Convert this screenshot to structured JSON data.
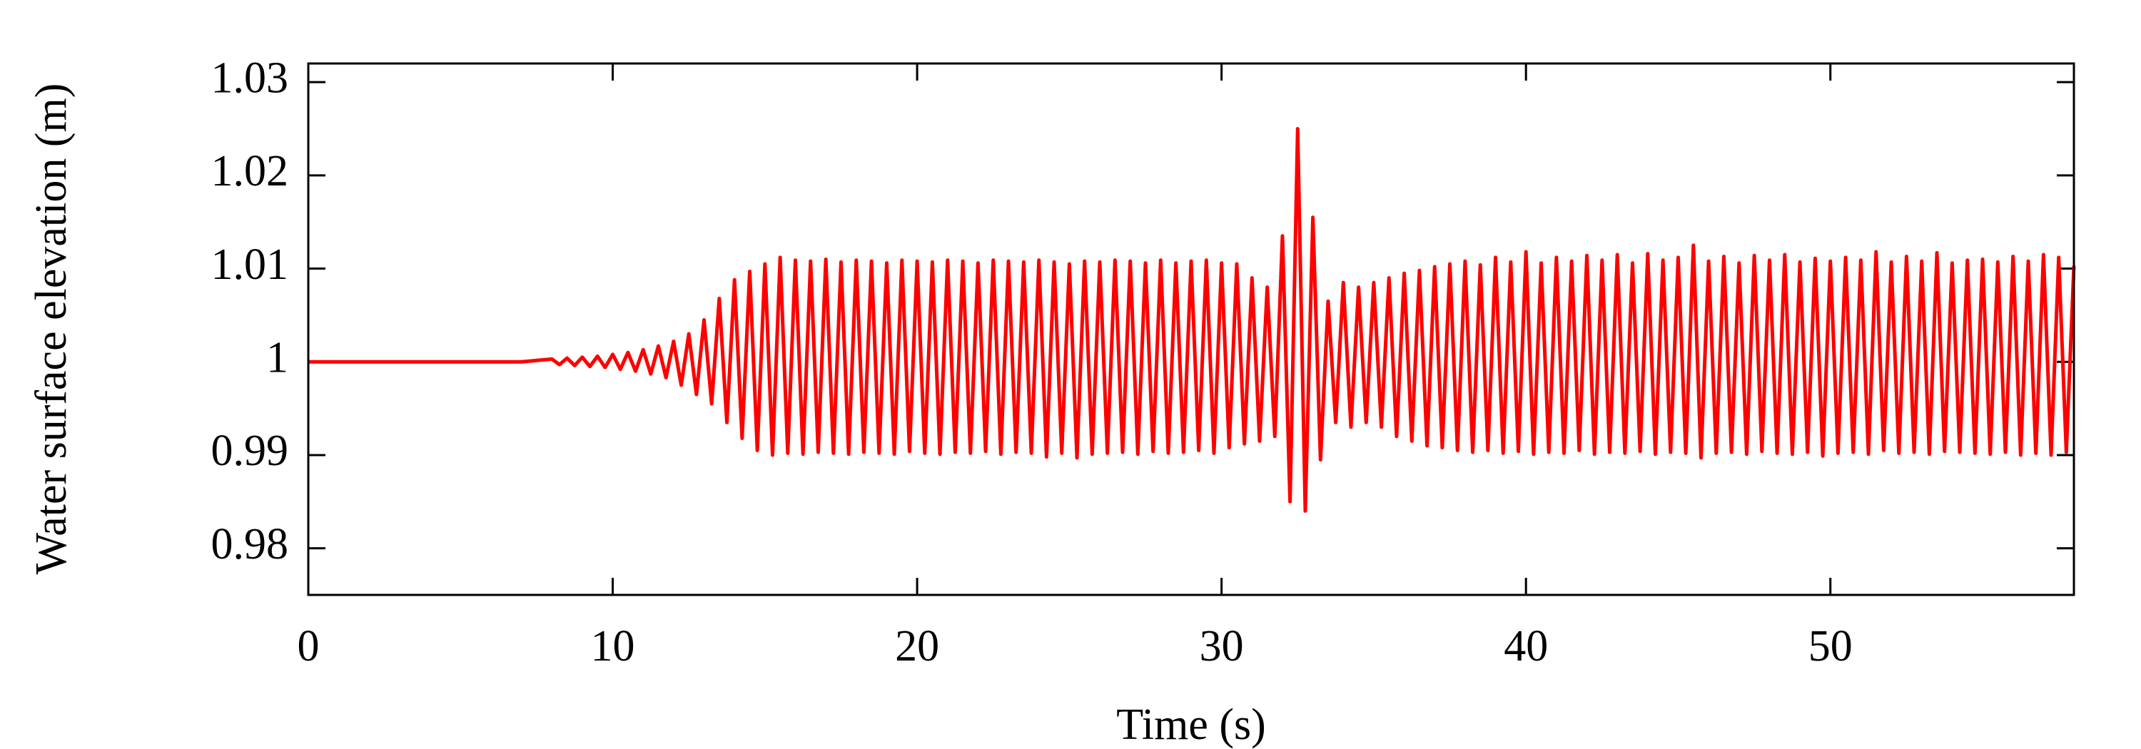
{
  "chart_data": {
    "type": "line",
    "xlabel": "Time (s)",
    "ylabel": "Water surface elevation (m)",
    "color": "#ff0000",
    "xlim": [
      0,
      58
    ],
    "ylim": [
      0.975,
      1.032
    ],
    "xticks": [
      0,
      10,
      20,
      30,
      40,
      50
    ],
    "yticks": [
      0.98,
      0.99,
      1,
      1.01,
      1.02,
      1.03
    ],
    "x": [
      0,
      2,
      4,
      6,
      7,
      8,
      8.25,
      8.5,
      8.75,
      9,
      9.25,
      9.5,
      9.75,
      10,
      10.25,
      10.5,
      10.75,
      11,
      11.25,
      11.5,
      11.75,
      12,
      12.25,
      12.5,
      12.75,
      13,
      13.25,
      13.5,
      13.75,
      14,
      14.25,
      14.5,
      14.75,
      15,
      15.25,
      15.5,
      15.75,
      16,
      16.25,
      16.5,
      16.75,
      17,
      17.25,
      17.5,
      17.75,
      18,
      18.25,
      18.5,
      18.75,
      19,
      19.25,
      19.5,
      19.75,
      20,
      20.25,
      20.5,
      20.75,
      21,
      21.25,
      21.5,
      21.75,
      22,
      22.25,
      22.5,
      22.75,
      23,
      23.25,
      23.5,
      23.75,
      24,
      24.25,
      24.5,
      24.75,
      25,
      25.25,
      25.5,
      25.75,
      26,
      26.25,
      26.5,
      26.75,
      27,
      27.25,
      27.5,
      27.75,
      28,
      28.25,
      28.5,
      28.75,
      29,
      29.25,
      29.5,
      29.75,
      30,
      30.25,
      30.5,
      30.75,
      31,
      31.25,
      31.5,
      31.75,
      32,
      32.25,
      32.5,
      32.75,
      33,
      33.25,
      33.5,
      33.75,
      34,
      34.25,
      34.5,
      34.75,
      35,
      35.25,
      35.5,
      35.75,
      36,
      36.25,
      36.5,
      36.75,
      37,
      37.25,
      37.5,
      37.75,
      38,
      38.25,
      38.5,
      38.75,
      39,
      39.25,
      39.5,
      39.75,
      40,
      40.25,
      40.5,
      40.75,
      41,
      41.25,
      41.5,
      41.75,
      42,
      42.25,
      42.5,
      42.75,
      43,
      43.25,
      43.5,
      43.75,
      44,
      44.25,
      44.5,
      44.75,
      45,
      45.25,
      45.5,
      45.75,
      46,
      46.25,
      46.5,
      46.75,
      47,
      47.25,
      47.5,
      47.75,
      48,
      48.25,
      48.5,
      48.75,
      49,
      49.25,
      49.5,
      49.75,
      50,
      50.25,
      50.5,
      50.75,
      51,
      51.25,
      51.5,
      51.75,
      52,
      52.25,
      52.5,
      52.75,
      53,
      53.25,
      53.5,
      53.75,
      54,
      54.25,
      54.5,
      54.75,
      55,
      55.25,
      55.5,
      55.75,
      56,
      56.25,
      56.5,
      56.75,
      57,
      57.25,
      57.5,
      57.75,
      58
    ],
    "values": [
      1,
      1,
      1,
      1,
      1,
      1.0003,
      0.9997,
      1.0004,
      0.9996,
      1.0005,
      0.9995,
      1.0006,
      0.9994,
      1.0008,
      0.9992,
      1.001,
      0.999,
      1.0013,
      0.9987,
      1.0017,
      0.9983,
      1.0022,
      0.9975,
      1.003,
      0.9965,
      1.0045,
      0.9955,
      1.0068,
      0.9935,
      1.0088,
      0.9918,
      1.0097,
      0.9905,
      1.0105,
      0.99,
      1.0112,
      0.9902,
      1.0109,
      0.9901,
      1.0108,
      0.9903,
      1.011,
      0.9902,
      1.0107,
      0.9901,
      1.0109,
      0.9903,
      1.0108,
      0.9902,
      1.0106,
      0.9901,
      1.0109,
      0.9904,
      1.0108,
      0.9902,
      1.0107,
      0.9901,
      1.0109,
      0.9903,
      1.0108,
      0.9902,
      1.0106,
      0.9904,
      1.0109,
      0.9901,
      1.0108,
      0.9903,
      1.0107,
      0.9902,
      1.0109,
      0.9898,
      1.0107,
      0.9902,
      1.0105,
      0.9897,
      1.0108,
      0.9901,
      1.0107,
      0.9902,
      1.0109,
      0.9903,
      1.0108,
      0.9901,
      1.0106,
      0.9904,
      1.0109,
      0.9902,
      1.0106,
      0.9903,
      1.0108,
      0.9905,
      1.0109,
      0.9902,
      1.0106,
      0.9908,
      1.0105,
      0.9912,
      1.009,
      0.9915,
      1.008,
      0.992,
      1.0135,
      0.985,
      1.025,
      0.984,
      1.0155,
      0.9895,
      1.0065,
      0.9935,
      1.0085,
      0.993,
      1.008,
      0.9935,
      1.0085,
      0.993,
      1.009,
      0.992,
      1.0095,
      0.9915,
      1.0098,
      0.991,
      1.0102,
      0.9908,
      1.0105,
      0.9905,
      1.0108,
      0.9903,
      1.0104,
      0.9905,
      1.0112,
      0.9902,
      1.0107,
      0.9904,
      1.0118,
      0.9901,
      1.0106,
      0.9903,
      1.0112,
      0.9902,
      1.0108,
      0.9905,
      1.0114,
      0.9901,
      1.0109,
      0.9903,
      1.0115,
      0.9902,
      1.0106,
      0.9904,
      1.0116,
      0.9901,
      1.0109,
      0.9903,
      1.0112,
      0.9902,
      1.0125,
      0.9897,
      1.0108,
      0.9902,
      1.0113,
      0.9903,
      1.0106,
      0.9901,
      1.0114,
      0.9904,
      1.0109,
      0.9902,
      1.0115,
      0.9901,
      1.0107,
      0.9903,
      1.0111,
      0.9899,
      1.0108,
      0.9902,
      1.0112,
      0.9903,
      1.0109,
      0.9901,
      1.0118,
      0.9905,
      1.0107,
      0.9902,
      1.0113,
      0.9903,
      1.0108,
      0.9901,
      1.0117,
      0.9904,
      1.0106,
      0.9903,
      1.0109,
      0.9902,
      1.011,
      0.9901,
      1.0107,
      0.9903,
      1.0113,
      0.99,
      1.0108,
      0.9902,
      1.0115,
      0.99,
      1.0112,
      0.9903,
      1.0103
    ]
  }
}
